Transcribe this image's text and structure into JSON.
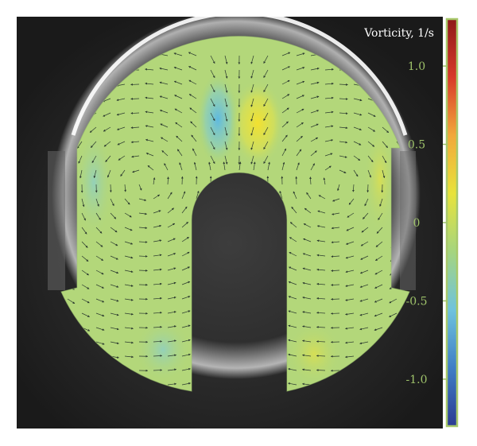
{
  "chart_data": {
    "type": "heatmap",
    "title": "",
    "colorbar": {
      "title": "Vorticity, 1/s",
      "range": [
        -1.3,
        1.3
      ],
      "ticks": [
        1.0,
        0.5,
        0,
        -0.5,
        -1.0
      ],
      "tick_labels": [
        "1.0",
        "0.5",
        "0",
        "-0.5",
        "-1.0"
      ],
      "colormap": [
        "#2c3b92",
        "#3f7ec6",
        "#6fc3dd",
        "#a5d57f",
        "#e8e33a",
        "#f2a83a",
        "#d83a2a",
        "#8e1a1a"
      ]
    },
    "field": {
      "background_value": 0.1,
      "features": [
        {
          "kind": "counter-rotating vortex pair",
          "negative_peak": -0.5,
          "positive_peak": 0.6,
          "location": "top center, above the cylinder"
        },
        {
          "kind": "secondary structure",
          "value": -0.2,
          "location": "left inner wall"
        },
        {
          "kind": "secondary structure",
          "value": 0.3,
          "location": "right inner wall"
        }
      ]
    },
    "overlay": "velocity vectors (arrows)"
  },
  "colors": {
    "photo_background": "#262626",
    "field_base": "#b3d77a",
    "axis_accent": "#9ec26a",
    "colorbar_frame": "#a7c86a"
  }
}
